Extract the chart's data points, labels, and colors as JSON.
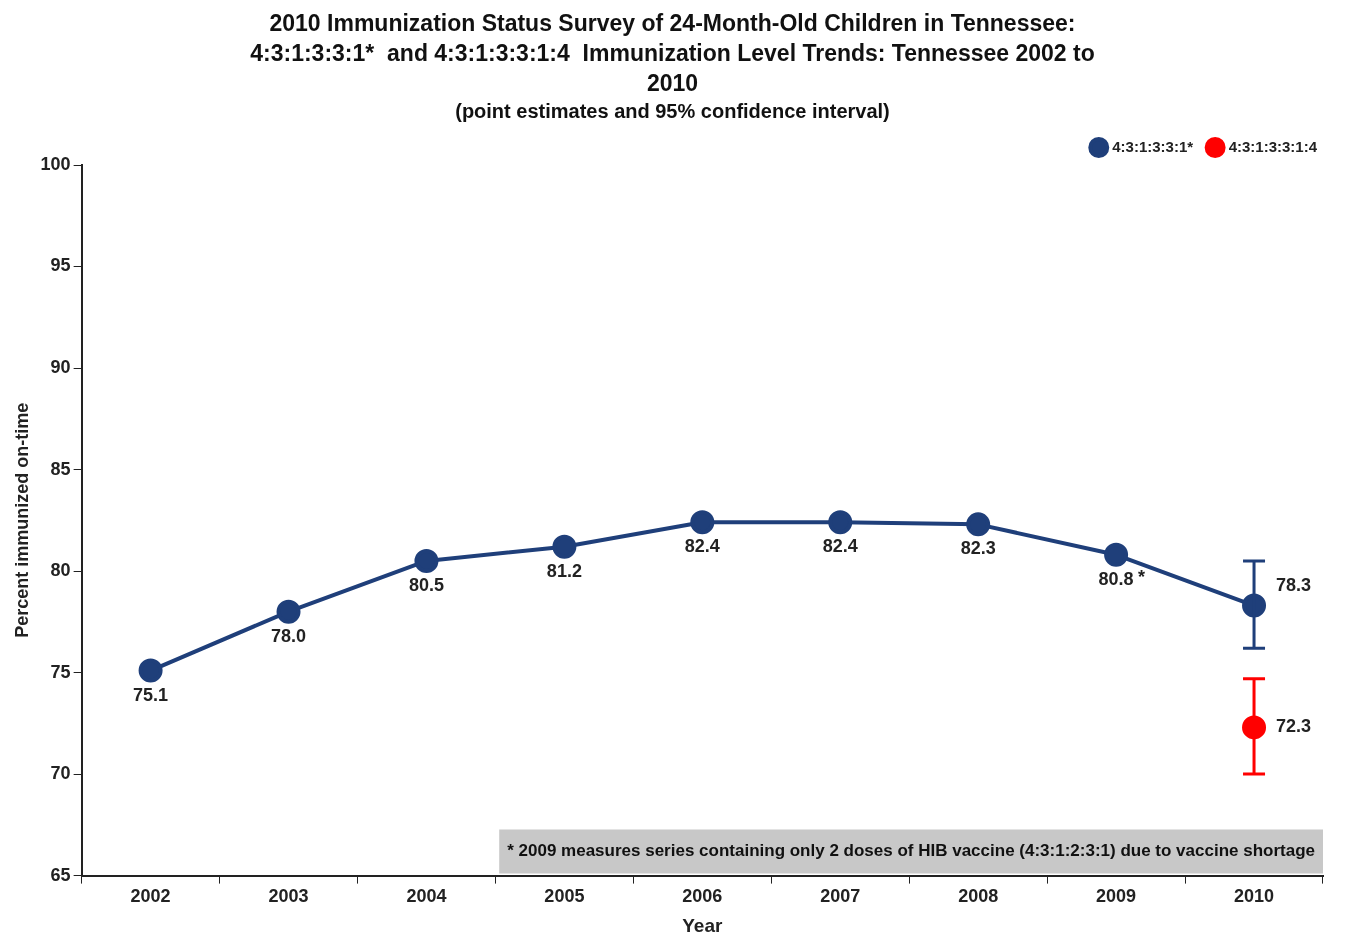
{
  "chart_data": {
    "type": "line",
    "title": "2010 Immunization Status Survey of 24-Month-Old Children in Tennessee: 4:3:1:3:3:1*  and 4:3:1:3:3:1:4  Immunization Level Trends: Tennessee 2002 to 2010",
    "subtitle": "(point estimates and 95% confidence interval)",
    "xlabel": "Year",
    "ylabel": "Percent immunized on-time",
    "categories": [
      "2002",
      "2003",
      "2004",
      "2005",
      "2006",
      "2007",
      "2008",
      "2009",
      "2010"
    ],
    "series": [
      {
        "name": "4:3:1:3:3:1*",
        "color": "#1f3f7a",
        "values": [
          75.1,
          78.0,
          80.5,
          81.2,
          82.4,
          82.4,
          82.3,
          80.8,
          78.3
        ],
        "value_labels": [
          "75.1",
          "78.0",
          "80.5",
          "81.2",
          "82.4",
          "82.4",
          "82.3",
          "80.8",
          "78.3"
        ],
        "errors": [
          null,
          null,
          null,
          null,
          null,
          null,
          null,
          null,
          [
            76.2,
            80.5
          ]
        ]
      },
      {
        "name": "4:3:1:3:3:1:4",
        "color": "#ff0000",
        "values": [
          null,
          null,
          null,
          null,
          null,
          null,
          null,
          null,
          72.3
        ],
        "value_labels": [
          null,
          null,
          null,
          null,
          null,
          null,
          null,
          null,
          "72.3"
        ],
        "errors": [
          null,
          null,
          null,
          null,
          null,
          null,
          null,
          null,
          [
            70.0,
            74.7
          ]
        ]
      }
    ],
    "ylim": [
      65,
      100
    ],
    "yticks": [
      65,
      70,
      75,
      80,
      85,
      90,
      95,
      100
    ],
    "grid": false,
    "legend": "top right",
    "marker": "circle",
    "line_style": "solid",
    "annotations": [
      {
        "text": "*",
        "x": "2009",
        "y": 80.8
      },
      "* 2009 measures series containing only 2 doses of HIB vaccine (4:3:1:2:3:1) due to vaccine shortage"
    ]
  }
}
